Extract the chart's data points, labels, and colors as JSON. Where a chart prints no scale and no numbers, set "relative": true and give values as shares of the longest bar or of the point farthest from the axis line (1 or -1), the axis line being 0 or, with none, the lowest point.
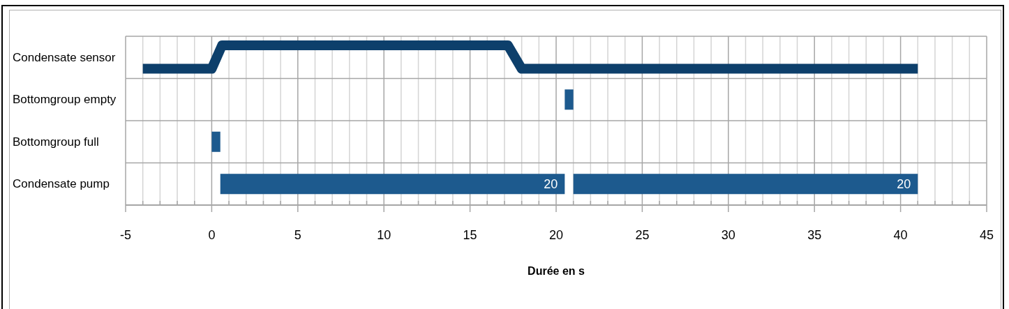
{
  "chart_data": [
    {
      "type": "line",
      "relative": true,
      "ylabel": "Condensate sensor",
      "series": [
        {
          "color": "#0d3f6b",
          "x": [
            -4,
            0,
            0.6,
            17.2,
            18,
            41
          ],
          "values": [
            0,
            0,
            1,
            1,
            0,
            0
          ]
        }
      ],
      "xlim": [
        -5,
        45
      ],
      "xticks": [
        -5,
        {
          "value": -4,
          "label": null
        },
        {
          "value": -3,
          "label": null
        },
        {
          "value": -2,
          "label": null
        },
        {
          "value": -1,
          "label": null
        },
        0,
        {
          "value": 1,
          "label": null
        },
        {
          "value": 2,
          "label": null
        },
        {
          "value": 3,
          "label": null
        },
        {
          "value": 4,
          "label": null
        },
        5,
        {
          "value": 6,
          "label": null
        },
        {
          "value": 7,
          "label": null
        },
        {
          "value": 8,
          "label": null
        },
        {
          "value": 9,
          "label": null
        },
        10,
        {
          "value": 11,
          "label": null
        },
        {
          "value": 12,
          "label": null
        },
        {
          "value": 13,
          "label": null
        },
        {
          "value": 14,
          "label": null
        },
        15,
        {
          "value": 16,
          "label": null
        },
        {
          "value": 17,
          "label": null
        },
        {
          "value": 18,
          "label": null
        },
        {
          "value": 19,
          "label": null
        },
        20,
        {
          "value": 21,
          "label": null
        },
        {
          "value": 22,
          "label": null
        },
        {
          "value": 23,
          "label": null
        },
        {
          "value": 24,
          "label": null
        },
        25,
        {
          "value": 26,
          "label": null
        },
        {
          "value": 27,
          "label": null
        },
        {
          "value": 28,
          "label": null
        },
        {
          "value": 29,
          "label": null
        },
        30,
        {
          "value": 31,
          "label": null
        },
        {
          "value": 32,
          "label": null
        },
        {
          "value": 33,
          "label": null
        },
        {
          "value": 34,
          "label": null
        },
        35,
        {
          "value": 36,
          "label": null
        },
        {
          "value": 37,
          "label": null
        },
        {
          "value": 38,
          "label": null
        },
        {
          "value": 39,
          "label": null
        },
        40,
        {
          "value": 41,
          "label": null
        },
        {
          "value": 42,
          "label": null
        },
        {
          "value": 43,
          "label": null
        },
        {
          "value": 44,
          "label": null
        },
        45
      ],
      "grid": "x",
      "tick_labels": false
    },
    {
      "type": "bar",
      "orientation": "horizontal",
      "categories": [
        "Bottomgroup empty",
        "Bottomgroup full",
        "Condensate pump"
      ],
      "series": [
        {
          "type": "bar",
          "color": "#1d5a8e",
          "base": [
            20.5,
            0,
            0.5
          ],
          "values": [
            0.5,
            0.5,
            20
          ],
          "value_labels": [
            null,
            null,
            "20"
          ]
        },
        {
          "type": "bar",
          "color": "#1d5a8e",
          "base": [
            null,
            null,
            21
          ],
          "values": [
            null,
            null,
            20
          ],
          "value_labels": [
            null,
            null,
            "20"
          ]
        }
      ],
      "xlim": [
        -5,
        45
      ],
      "xticks": [
        -5,
        {
          "value": -4,
          "label": null
        },
        {
          "value": -3,
          "label": null
        },
        {
          "value": -2,
          "label": null
        },
        {
          "value": -1,
          "label": null
        },
        0,
        {
          "value": 1,
          "label": null
        },
        {
          "value": 2,
          "label": null
        },
        {
          "value": 3,
          "label": null
        },
        {
          "value": 4,
          "label": null
        },
        5,
        {
          "value": 6,
          "label": null
        },
        {
          "value": 7,
          "label": null
        },
        {
          "value": 8,
          "label": null
        },
        {
          "value": 9,
          "label": null
        },
        10,
        {
          "value": 11,
          "label": null
        },
        {
          "value": 12,
          "label": null
        },
        {
          "value": 13,
          "label": null
        },
        {
          "value": 14,
          "label": null
        },
        15,
        {
          "value": 16,
          "label": null
        },
        {
          "value": 17,
          "label": null
        },
        {
          "value": 18,
          "label": null
        },
        {
          "value": 19,
          "label": null
        },
        20,
        {
          "value": 21,
          "label": null
        },
        {
          "value": 22,
          "label": null
        },
        {
          "value": 23,
          "label": null
        },
        {
          "value": 24,
          "label": null
        },
        25,
        {
          "value": 26,
          "label": null
        },
        {
          "value": 27,
          "label": null
        },
        {
          "value": 28,
          "label": null
        },
        {
          "value": 29,
          "label": null
        },
        30,
        {
          "value": 31,
          "label": null
        },
        {
          "value": 32,
          "label": null
        },
        {
          "value": 33,
          "label": null
        },
        {
          "value": 34,
          "label": null
        },
        35,
        {
          "value": 36,
          "label": null
        },
        {
          "value": 37,
          "label": null
        },
        {
          "value": 38,
          "label": null
        },
        {
          "value": 39,
          "label": null
        },
        40,
        {
          "value": 41,
          "label": null
        },
        {
          "value": 42,
          "label": null
        },
        {
          "value": 43,
          "label": null
        },
        {
          "value": 44,
          "label": null
        },
        45
      ],
      "xlabel": "Durée en s",
      "grid": true
    }
  ]
}
